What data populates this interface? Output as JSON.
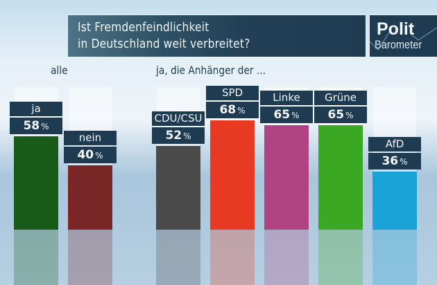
{
  "header": {
    "title_line1": "Ist Fremdenfeindlichkeit",
    "title_line2": "in Deutschland weit verbreitet?"
  },
  "logo": {
    "line1": "Polit",
    "line2": "Barometer"
  },
  "sections": {
    "all": "alle",
    "supporters": "ja, die Anhänger der ..."
  },
  "chart_data": {
    "type": "bar",
    "title": "Ist Fremdenfeindlichkeit in Deutschland weit verbreitet?",
    "unit": "%",
    "ylim": [
      0,
      100
    ],
    "groups": [
      {
        "name": "alle",
        "categories": [
          "ja",
          "nein"
        ],
        "values": [
          58,
          40
        ],
        "colors": [
          "#185a18",
          "#7a2626"
        ]
      },
      {
        "name": "ja, die Anhänger der ...",
        "categories": [
          "CDU/CSU",
          "SPD",
          "Linke",
          "Grüne",
          "AfD"
        ],
        "values": [
          52,
          68,
          65,
          65,
          36
        ],
        "colors": [
          "#4a4a4a",
          "#e83a22",
          "#b04383",
          "#3aa822",
          "#1aa3d6"
        ]
      }
    ],
    "bars": [
      {
        "label": "ja",
        "value": 58,
        "pct": "%",
        "color": "#185a18"
      },
      {
        "label": "nein",
        "value": 40,
        "pct": "%",
        "color": "#7a2626"
      },
      {
        "label": "CDU/CSU",
        "value": 52,
        "pct": "%",
        "color": "#4a4a4a"
      },
      {
        "label": "SPD",
        "value": 68,
        "pct": "%",
        "color": "#e83a22"
      },
      {
        "label": "Linke",
        "value": 65,
        "pct": "%",
        "color": "#b04383"
      },
      {
        "label": "Grüne",
        "value": 65,
        "pct": "%",
        "color": "#3aa822"
      },
      {
        "label": "AfD",
        "value": 36,
        "pct": "%",
        "color": "#1aa3d6"
      }
    ]
  }
}
